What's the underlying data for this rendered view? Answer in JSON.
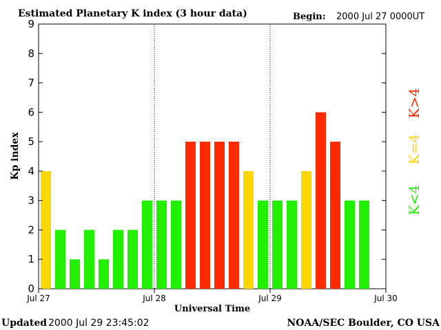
{
  "header": {
    "title": "Estimated Planetary K index (3 hour data)",
    "begin_label": "Begin:",
    "begin_value": "2000 Jul 27 0000UT"
  },
  "footer": {
    "updated_label": "Updated",
    "updated_value": "2000 Jul 29 23:45:02",
    "source": "NOAA/SEC Boulder, CO USA"
  },
  "legend": {
    "items": [
      {
        "label": "K>4",
        "color": "#ff2a00"
      },
      {
        "label": "K=4",
        "color": "#ffd700"
      },
      {
        "label": "K<4",
        "color": "#22ee00"
      }
    ]
  },
  "chart_data": {
    "type": "bar",
    "ylabel": "Kp index",
    "xlabel": "Universal Time",
    "ylim": [
      0,
      9
    ],
    "yticks": [
      0,
      1,
      2,
      3,
      4,
      5,
      6,
      7,
      8,
      9
    ],
    "xticks": [
      "Jul 27",
      "Jul 28",
      "Jul 29",
      "Jul 30"
    ],
    "day_separators": [
      "Jul 28",
      "Jul 29"
    ],
    "interval_hours": 3,
    "values": [
      4,
      2,
      1,
      2,
      1,
      2,
      2,
      3,
      3,
      3,
      5,
      5,
      5,
      5,
      4,
      3,
      3,
      3,
      4,
      6,
      5,
      3,
      3
    ],
    "colors": {
      "low": "#22ee00",
      "equal": "#ffd700",
      "high": "#ff2a00"
    }
  }
}
